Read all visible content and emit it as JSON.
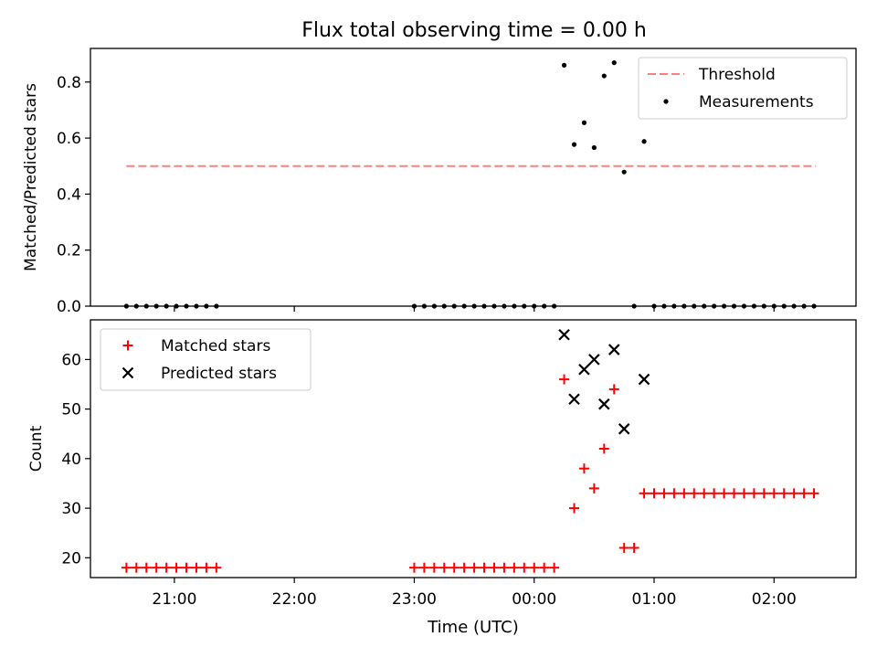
{
  "figure": {
    "title": "Flux total observing time = 0.00 h",
    "xlabel": "Time (UTC)",
    "xticks": [
      {
        "t": 1260,
        "label": "21:00"
      },
      {
        "t": 1320,
        "label": "22:00"
      },
      {
        "t": 1380,
        "label": "23:00"
      },
      {
        "t": 1440,
        "label": "00:00"
      },
      {
        "t": 1500,
        "label": "01:00"
      },
      {
        "t": 1560,
        "label": "02:00"
      }
    ],
    "xlim_minutes_after_midnight_prev_day": [
      1218,
      1601
    ]
  },
  "chart_data": [
    {
      "type": "scatter",
      "ylabel": "Matched/Predicted stars",
      "ylim": [
        0,
        0.92
      ],
      "yticks": [
        "0.0",
        "0.2",
        "0.4",
        "0.6",
        "0.8"
      ],
      "ytick_values": [
        0.0,
        0.2,
        0.4,
        0.6,
        0.8
      ],
      "legend_position": "top-right",
      "threshold": {
        "name": "Threshold",
        "y": 0.5,
        "x_range": [
          1236,
          1581
        ],
        "color": "#ff7f7f",
        "style": "dashed"
      },
      "series": [
        {
          "name": "Measurements",
          "marker": "dot",
          "color": "#000000",
          "x": [
            1236,
            1241,
            1246,
            1251,
            1256,
            1261,
            1266,
            1271,
            1276,
            1281,
            1380,
            1385,
            1390,
            1395,
            1400,
            1405,
            1410,
            1415,
            1420,
            1425,
            1430,
            1435,
            1440,
            1445,
            1450,
            1455,
            1460,
            1465,
            1470,
            1475,
            1480,
            1485,
            1490,
            1495,
            1500,
            1505,
            1510,
            1515,
            1520,
            1525,
            1530,
            1535,
            1540,
            1545,
            1550,
            1555,
            1560,
            1565,
            1570,
            1575,
            1580
          ],
          "y": [
            0,
            0,
            0,
            0,
            0,
            0,
            0,
            0,
            0,
            0,
            0,
            0,
            0,
            0,
            0,
            0,
            0,
            0,
            0,
            0,
            0,
            0,
            0,
            0,
            0,
            0.86,
            0.577,
            0.655,
            0.566,
            0.822,
            0.869,
            0.479,
            0,
            0.588,
            0,
            0,
            0,
            0,
            0,
            0,
            0,
            0,
            0,
            0,
            0,
            0,
            0,
            0,
            0,
            0,
            0
          ]
        }
      ]
    },
    {
      "type": "scatter",
      "ylabel": "Count",
      "ylim": [
        16,
        68
      ],
      "yticks": [
        "20",
        "30",
        "40",
        "50",
        "60"
      ],
      "ytick_values": [
        20,
        30,
        40,
        50,
        60
      ],
      "legend_position": "top-left",
      "series": [
        {
          "name": "Matched stars",
          "marker": "plus",
          "color": "#ff0000",
          "x": [
            1236,
            1241,
            1246,
            1251,
            1256,
            1261,
            1266,
            1271,
            1276,
            1281,
            1380,
            1385,
            1390,
            1395,
            1400,
            1405,
            1410,
            1415,
            1420,
            1425,
            1430,
            1435,
            1440,
            1445,
            1450,
            1455,
            1460,
            1465,
            1470,
            1475,
            1480,
            1485,
            1490,
            1495,
            1500,
            1505,
            1510,
            1515,
            1520,
            1525,
            1530,
            1535,
            1540,
            1545,
            1550,
            1555,
            1560,
            1565,
            1570,
            1575,
            1580
          ],
          "y": [
            18,
            18,
            18,
            18,
            18,
            18,
            18,
            18,
            18,
            18,
            18,
            18,
            18,
            18,
            18,
            18,
            18,
            18,
            18,
            18,
            18,
            18,
            18,
            18,
            18,
            56,
            30,
            38,
            34,
            42,
            54,
            22,
            22,
            33,
            33,
            33,
            33,
            33,
            33,
            33,
            33,
            33,
            33,
            33,
            33,
            33,
            33,
            33,
            33,
            33,
            33
          ]
        },
        {
          "name": "Predicted stars",
          "marker": "x",
          "color": "#000000",
          "x": [
            1455,
            1460,
            1465,
            1470,
            1475,
            1480,
            1485,
            1495
          ],
          "y": [
            65,
            52,
            58,
            60,
            51,
            62,
            46,
            56
          ]
        }
      ]
    }
  ]
}
